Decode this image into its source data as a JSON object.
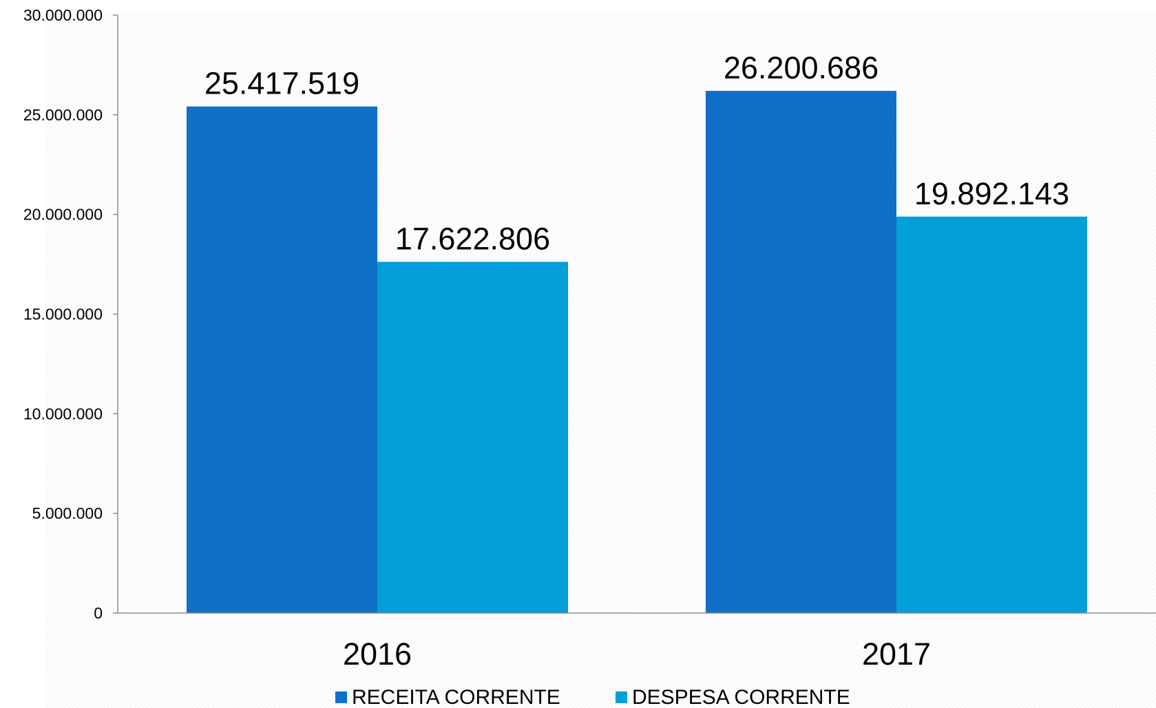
{
  "chart_data": {
    "type": "bar",
    "categories": [
      "2016",
      "2017"
    ],
    "series": [
      {
        "name": "RECEITA CORRENTE",
        "values": [
          25417519,
          26200686
        ],
        "labels": [
          "25.417.519",
          "26.200.686"
        ],
        "color": "#1070C8"
      },
      {
        "name": "DESPESA CORRENTE",
        "values": [
          17622806,
          19892143
        ],
        "labels": [
          "17.622.806",
          "19.892.143"
        ],
        "color": "#039FD9"
      }
    ],
    "ylim": [
      0,
      30000000
    ],
    "yticks": [
      0,
      5000000,
      10000000,
      15000000,
      20000000,
      25000000,
      30000000
    ],
    "ytick_labels": [
      "0",
      "5.000.000",
      "10.000.000",
      "15.000.000",
      "20.000.000",
      "25.000.000",
      "30.000.000"
    ],
    "legend_position": "bottom",
    "grid": false,
    "title": "",
    "xlabel": "",
    "ylabel": ""
  }
}
